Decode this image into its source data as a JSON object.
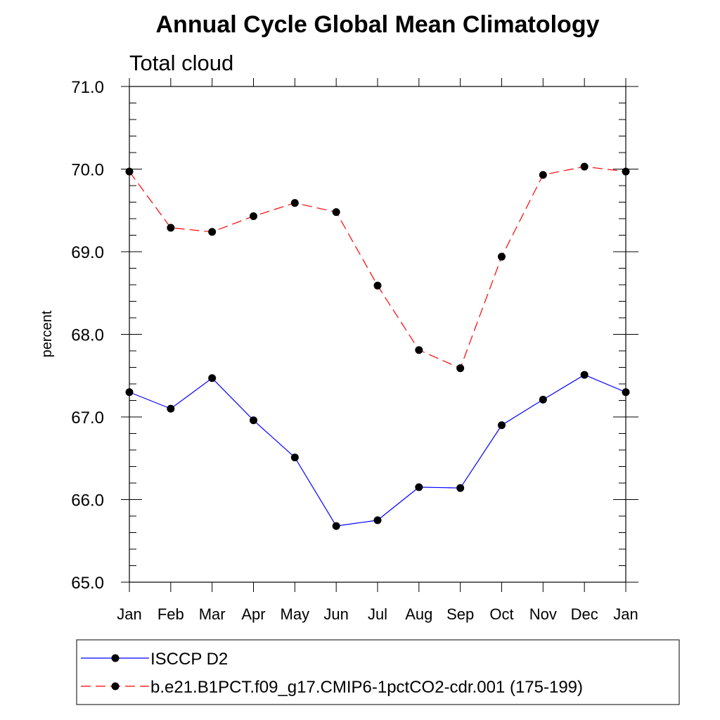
{
  "chart_data": {
    "type": "line",
    "title": "Annual Cycle Global Mean Climatology",
    "subtitle": "Total cloud",
    "xlabel": "",
    "ylabel": "percent",
    "categories": [
      "Jan",
      "Feb",
      "Mar",
      "Apr",
      "May",
      "Jun",
      "Jul",
      "Aug",
      "Sep",
      "Oct",
      "Nov",
      "Dec",
      "Jan"
    ],
    "ylim": [
      65.0,
      71.0
    ],
    "yticks": [
      "65.0",
      "66.0",
      "67.0",
      "68.0",
      "69.0",
      "70.0",
      "71.0"
    ],
    "grid": false,
    "legend_position": "bottom",
    "series": [
      {
        "name": "ISCCP D2",
        "color": "#0000ff",
        "dash": "solid",
        "marker": "circle",
        "values": [
          67.3,
          67.1,
          67.47,
          66.96,
          66.51,
          65.68,
          65.75,
          66.15,
          66.14,
          66.9,
          67.21,
          67.51,
          67.3
        ]
      },
      {
        "name": "b.e21.B1PCT.f09_g17.CMIP6-1pctCO2-cdr.001 (175-199)",
        "color": "#ff0000",
        "dash": "dashed",
        "marker": "circle",
        "values": [
          69.97,
          69.29,
          69.24,
          69.43,
          69.59,
          69.48,
          68.59,
          67.81,
          67.59,
          68.94,
          69.93,
          70.03,
          69.97
        ]
      }
    ]
  }
}
